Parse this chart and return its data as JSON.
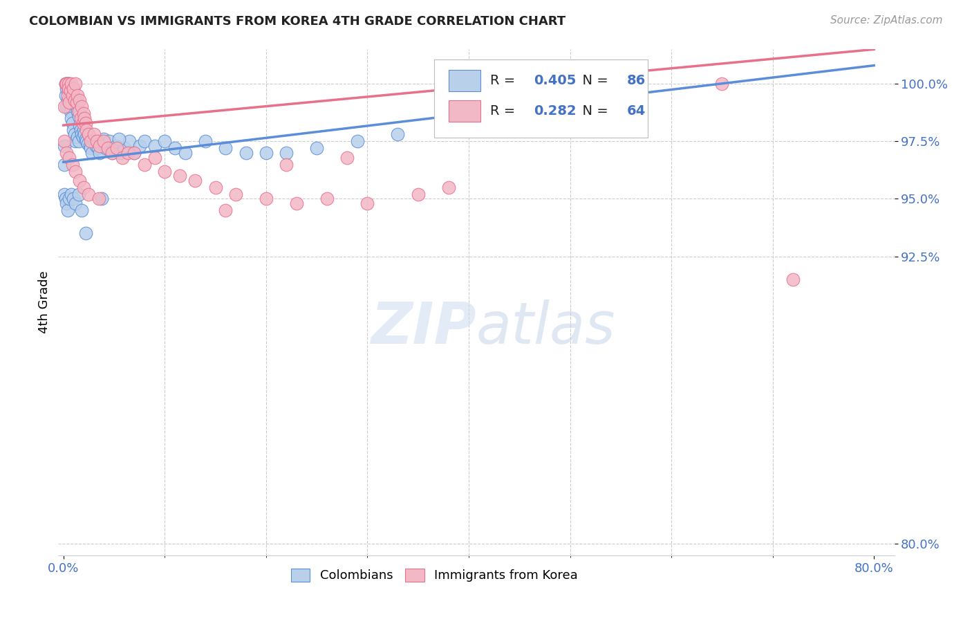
{
  "title": "COLOMBIAN VS IMMIGRANTS FROM KOREA 4TH GRADE CORRELATION CHART",
  "source": "Source: ZipAtlas.com",
  "ylabel": "4th Grade",
  "yaxis_ticks": [
    80.0,
    92.5,
    95.0,
    97.5,
    100.0
  ],
  "ylim": [
    79.5,
    101.5
  ],
  "xlim": [
    -0.005,
    0.82
  ],
  "xticks": [
    0.0,
    0.8
  ],
  "xticklabels": [
    "0.0%",
    "80.0%"
  ],
  "blue_R": 0.405,
  "blue_N": 86,
  "pink_R": 0.282,
  "pink_N": 64,
  "blue_color": "#b8d0ea",
  "pink_color": "#f2b8c6",
  "blue_line_color": "#5b8dd9",
  "pink_line_color": "#e8708a",
  "title_color": "#222222",
  "source_color": "#999999",
  "axis_label_color": "#4472c4",
  "watermark": "ZIPatlas",
  "blue_scatter_x": [
    0.001,
    0.001,
    0.002,
    0.002,
    0.003,
    0.003,
    0.003,
    0.004,
    0.004,
    0.005,
    0.005,
    0.006,
    0.006,
    0.007,
    0.007,
    0.008,
    0.008,
    0.009,
    0.009,
    0.01,
    0.01,
    0.011,
    0.011,
    0.012,
    0.012,
    0.013,
    0.014,
    0.014,
    0.015,
    0.015,
    0.016,
    0.017,
    0.018,
    0.019,
    0.02,
    0.021,
    0.022,
    0.023,
    0.024,
    0.025,
    0.026,
    0.027,
    0.028,
    0.03,
    0.032,
    0.034,
    0.036,
    0.038,
    0.04,
    0.042,
    0.045,
    0.048,
    0.052,
    0.056,
    0.06,
    0.065,
    0.07,
    0.075,
    0.08,
    0.09,
    0.1,
    0.11,
    0.12,
    0.14,
    0.16,
    0.18,
    0.2,
    0.22,
    0.25,
    0.29,
    0.33,
    0.38,
    0.42,
    0.001,
    0.002,
    0.003,
    0.004,
    0.006,
    0.008,
    0.01,
    0.012,
    0.015,
    0.018,
    0.022,
    0.038,
    0.055
  ],
  "blue_scatter_y": [
    97.3,
    96.5,
    100.0,
    99.5,
    100.0,
    99.8,
    99.0,
    100.0,
    99.3,
    100.0,
    99.7,
    100.0,
    99.2,
    99.8,
    98.8,
    99.5,
    98.5,
    99.6,
    98.3,
    99.8,
    98.0,
    99.4,
    97.8,
    99.2,
    97.5,
    99.0,
    98.8,
    97.7,
    98.6,
    97.5,
    98.2,
    98.0,
    97.8,
    97.7,
    98.0,
    97.8,
    97.6,
    97.5,
    97.4,
    97.8,
    97.3,
    97.2,
    97.0,
    97.5,
    97.3,
    97.2,
    97.0,
    97.5,
    97.6,
    97.2,
    97.5,
    97.0,
    97.3,
    97.0,
    97.2,
    97.5,
    97.0,
    97.3,
    97.5,
    97.3,
    97.5,
    97.2,
    97.0,
    97.5,
    97.2,
    97.0,
    97.0,
    97.0,
    97.2,
    97.5,
    97.8,
    98.0,
    98.3,
    95.2,
    95.0,
    94.8,
    94.5,
    95.0,
    95.2,
    95.0,
    94.8,
    95.2,
    94.5,
    93.5,
    95.0,
    97.6
  ],
  "pink_scatter_x": [
    0.001,
    0.002,
    0.003,
    0.004,
    0.005,
    0.005,
    0.006,
    0.007,
    0.008,
    0.009,
    0.01,
    0.011,
    0.012,
    0.013,
    0.014,
    0.015,
    0.016,
    0.017,
    0.018,
    0.019,
    0.02,
    0.021,
    0.022,
    0.023,
    0.025,
    0.027,
    0.03,
    0.033,
    0.036,
    0.04,
    0.044,
    0.048,
    0.053,
    0.058,
    0.064,
    0.07,
    0.08,
    0.09,
    0.1,
    0.115,
    0.13,
    0.15,
    0.17,
    0.2,
    0.23,
    0.26,
    0.3,
    0.35,
    0.38,
    0.001,
    0.003,
    0.006,
    0.009,
    0.012,
    0.016,
    0.02,
    0.025,
    0.035,
    0.16,
    0.22,
    0.28,
    0.38,
    0.65,
    0.72
  ],
  "pink_scatter_y": [
    99.0,
    100.0,
    100.0,
    99.5,
    100.0,
    99.8,
    99.2,
    99.7,
    100.0,
    99.5,
    99.8,
    99.3,
    100.0,
    99.2,
    99.5,
    98.8,
    99.3,
    98.5,
    99.0,
    98.3,
    98.7,
    98.5,
    98.3,
    98.0,
    97.8,
    97.5,
    97.8,
    97.5,
    97.3,
    97.5,
    97.2,
    97.0,
    97.2,
    96.8,
    97.0,
    97.0,
    96.5,
    96.8,
    96.2,
    96.0,
    95.8,
    95.5,
    95.2,
    95.0,
    94.8,
    95.0,
    94.8,
    95.2,
    95.5,
    97.5,
    97.0,
    96.8,
    96.5,
    96.2,
    95.8,
    95.5,
    95.2,
    95.0,
    94.5,
    96.5,
    96.8,
    100.0,
    100.0,
    91.5
  ]
}
